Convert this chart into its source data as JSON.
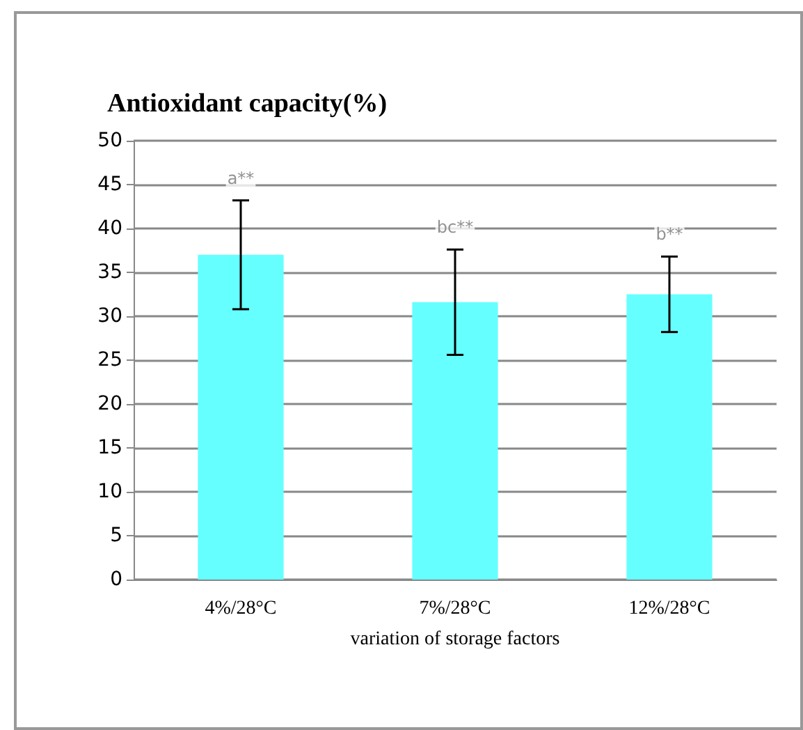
{
  "chart_data": {
    "type": "bar",
    "title": "Antioxidant capacity(%)",
    "xlabel": "variation of storage factors",
    "categories": [
      "4%/28°C",
      "7%/28°C",
      "12%/28°C"
    ],
    "values": [
      37.0,
      31.6,
      32.5
    ],
    "color": "#66ffff",
    "errors": [
      6.2,
      6.0,
      4.3
    ],
    "ylim": [
      0,
      50
    ],
    "yticks": [
      0,
      5,
      10,
      15,
      20,
      25,
      30,
      35,
      40,
      45,
      50
    ],
    "grid": "y",
    "annotations": [
      "a**",
      "bc**",
      "b**"
    ]
  }
}
